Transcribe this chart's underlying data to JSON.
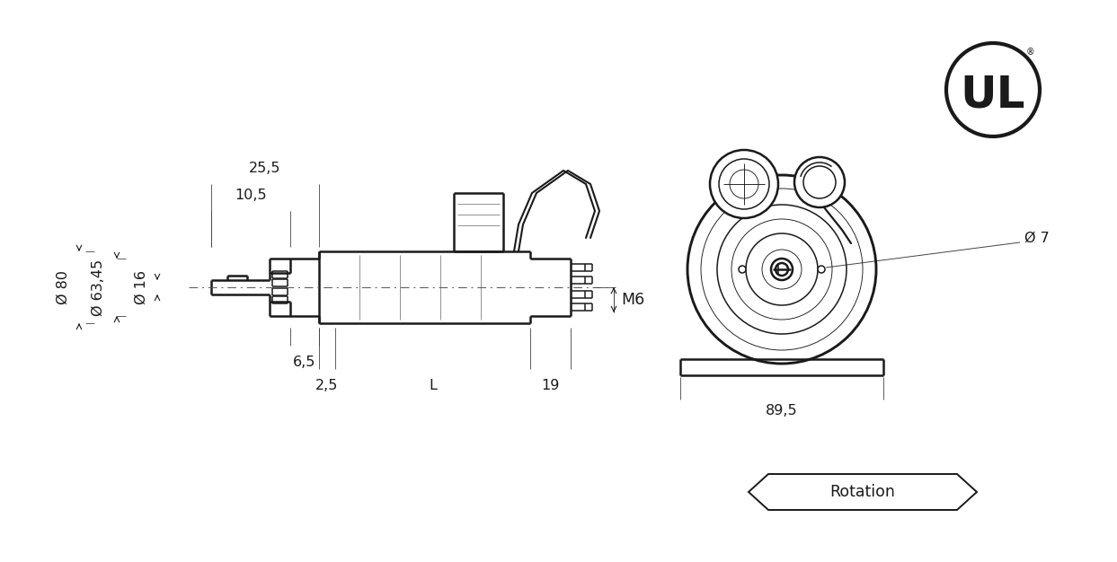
{
  "bg_color": "#ffffff",
  "lc": "#1a1a1a",
  "tw": 1.8,
  "mw": 1.1,
  "tnw": 0.65,
  "fs": 11.5,
  "annotations": {
    "dim_255": "25,5",
    "dim_105": "10,5",
    "dim_80": "Ø 80",
    "dim_6345": "Ø 63,45",
    "dim_16": "Ø 16",
    "dim_65": "6,5",
    "dim_25": "2,5",
    "dim_L": "L",
    "dim_19": "19",
    "dim_M6": "M6",
    "dim_895": "89,5",
    "dim_7": "Ø 7",
    "rotation": "Rotation",
    "UL": "UL"
  }
}
